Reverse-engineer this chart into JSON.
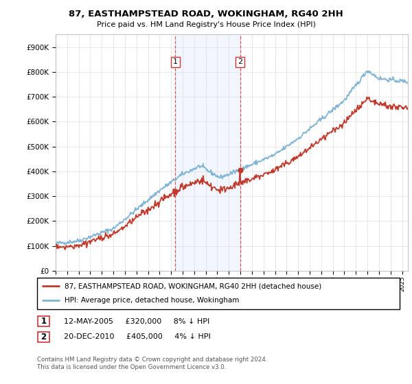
{
  "title": "87, EASTHAMPSTEAD ROAD, WOKINGHAM, RG40 2HH",
  "subtitle": "Price paid vs. HM Land Registry's House Price Index (HPI)",
  "ytick_values": [
    0,
    100000,
    200000,
    300000,
    400000,
    500000,
    600000,
    700000,
    800000,
    900000
  ],
  "ylim": [
    0,
    950000
  ],
  "xlim_start": 1995.0,
  "xlim_end": 2025.5,
  "hpi_color": "#7fb3d3",
  "price_color": "#c0392b",
  "sale1_date": 2005.36,
  "sale1_price": 320000,
  "sale2_date": 2010.97,
  "sale2_price": 405000,
  "legend_line1": "87, EASTHAMPSTEAD ROAD, WOKINGHAM, RG40 2HH (detached house)",
  "legend_line2": "HPI: Average price, detached house, Wokingham",
  "table_row1": [
    "1",
    "12-MAY-2005",
    "£320,000",
    "8% ↓ HPI"
  ],
  "table_row2": [
    "2",
    "20-DEC-2010",
    "£405,000",
    "4% ↓ HPI"
  ],
  "footnote": "Contains HM Land Registry data © Crown copyright and database right 2024.\nThis data is licensed under the Open Government Licence v3.0.",
  "shaded_start": 2005.36,
  "shaded_end": 2010.97,
  "grid_color": "#dddddd"
}
